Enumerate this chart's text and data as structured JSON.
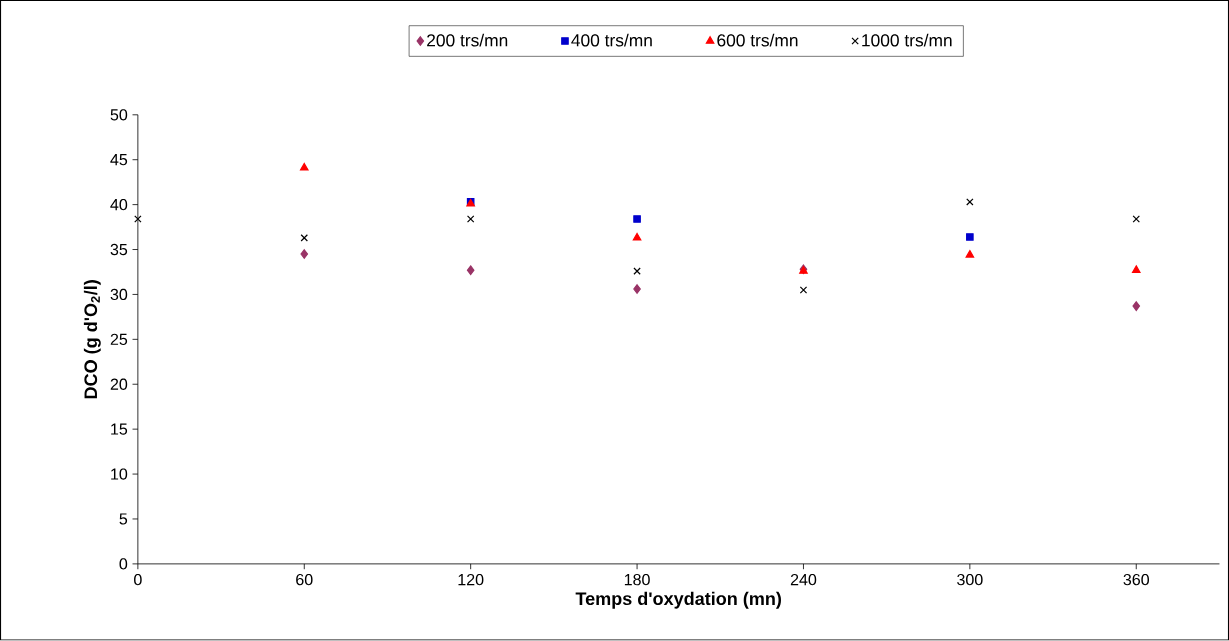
{
  "chart_data": {
    "type": "scatter",
    "xlabel": "Temps d'oxydation (mn)",
    "ylabel": "DCO (g d'O$_{2}$/l)",
    "x": [
      0,
      60,
      120,
      180,
      240,
      300,
      360
    ],
    "xlim": [
      0,
      390
    ],
    "xticks": [
      0,
      60,
      120,
      180,
      240,
      300,
      360
    ],
    "ylim": [
      0,
      50
    ],
    "yticks": [
      0,
      5,
      10,
      15,
      20,
      25,
      30,
      35,
      40,
      45,
      50
    ],
    "grid": false,
    "legend": "top",
    "series": [
      {
        "name": "200 trs/mn",
        "color": "#993366",
        "marker": "diamond",
        "values": [
          null,
          34.5,
          32.7,
          30.6,
          32.8,
          null,
          28.7
        ]
      },
      {
        "name": "400 trs/mn",
        "color": "#0000cc",
        "marker": "square",
        "values": [
          null,
          null,
          40.3,
          38.4,
          null,
          36.4,
          null
        ]
      },
      {
        "name": "600 trs/mn",
        "color": "#ff0000",
        "marker": "triangle",
        "values": [
          null,
          44.1,
          40.1,
          36.3,
          32.6,
          34.4,
          32.7
        ]
      },
      {
        "name": "1000 trs/mn",
        "color": "#000000",
        "marker": "cross",
        "values": [
          38.4,
          36.3,
          38.4,
          32.6,
          30.5,
          40.3,
          38.4
        ]
      }
    ]
  }
}
